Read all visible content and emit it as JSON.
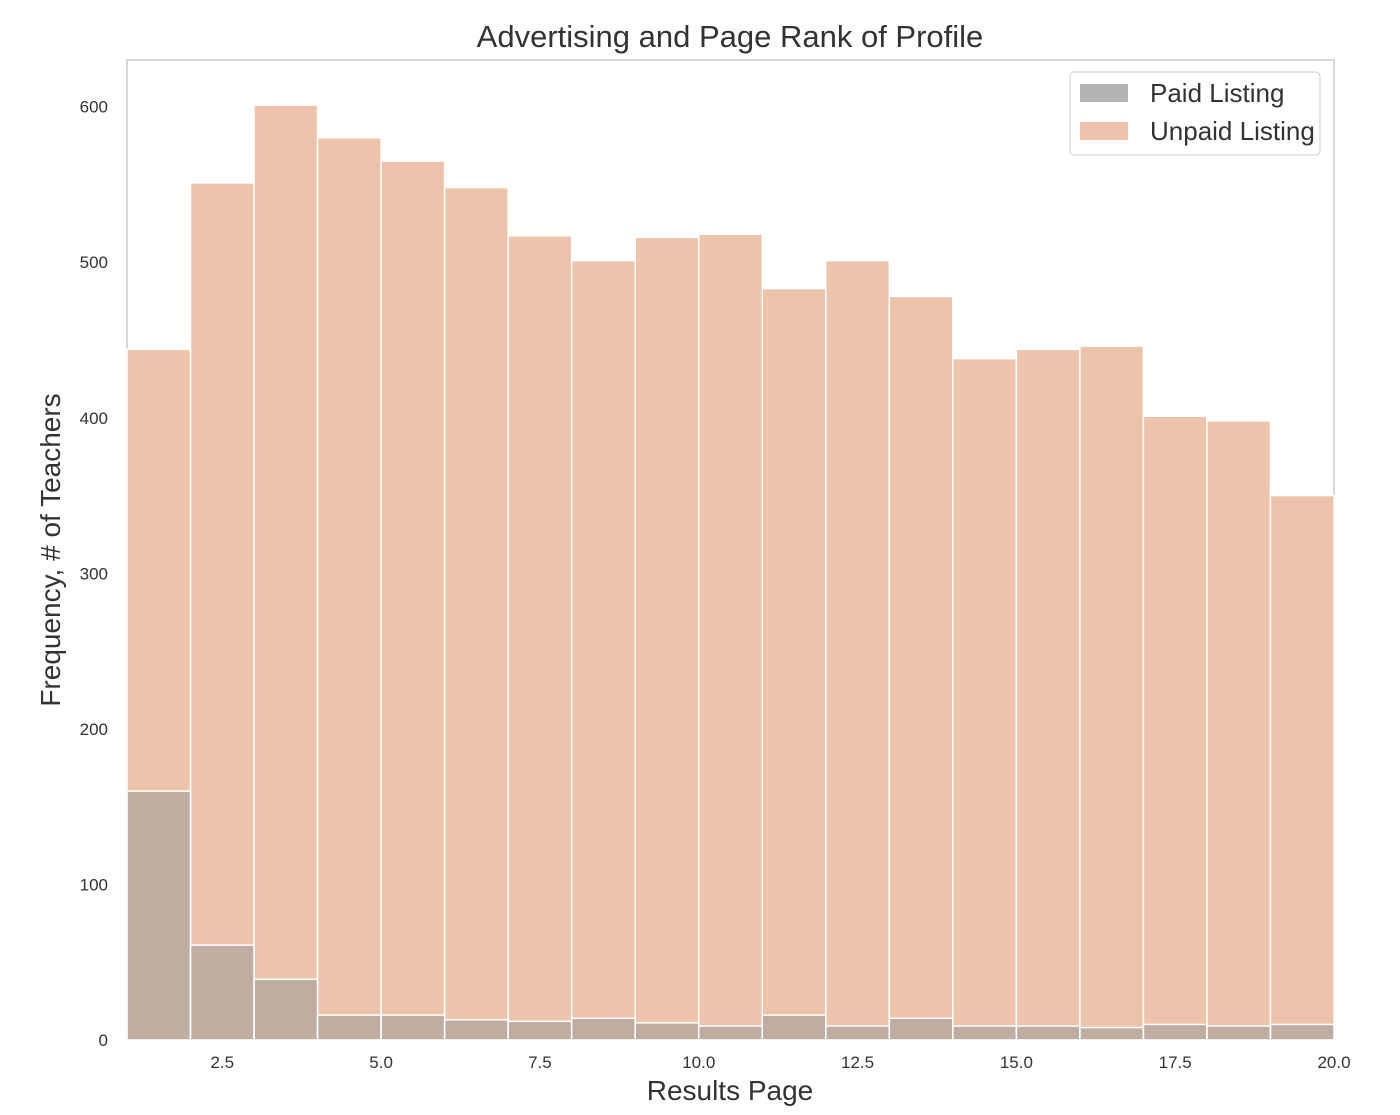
{
  "chart_data": {
    "type": "bar",
    "title": "Advertising and Page Rank of Profile",
    "xlabel": "Results Page",
    "ylabel": "Frequency, # of Teachers",
    "xlim": [
      1,
      20
    ],
    "ylim": [
      0,
      630
    ],
    "bin_edges": [
      1,
      2,
      3,
      4,
      5,
      6,
      7,
      8,
      9,
      10,
      11,
      12,
      13,
      14,
      15,
      16,
      17,
      18,
      19,
      20
    ],
    "xticks": [
      2.5,
      5.0,
      7.5,
      10.0,
      12.5,
      15.0,
      17.5,
      20.0
    ],
    "xtick_labels": [
      "2.5",
      "5.0",
      "7.5",
      "10.0",
      "12.5",
      "15.0",
      "17.5",
      "20.0"
    ],
    "yticks": [
      0,
      100,
      200,
      300,
      400,
      500,
      600
    ],
    "ytick_labels": [
      "0",
      "100",
      "200",
      "300",
      "400",
      "500",
      "600"
    ],
    "grid": false,
    "legend_position": "top-right",
    "series": [
      {
        "name": "Unpaid Listing",
        "color": "#e8b496",
        "opacity": 0.8,
        "values": [
          444,
          551,
          601,
          580,
          565,
          548,
          517,
          501,
          516,
          518,
          483,
          501,
          478,
          438,
          444,
          446,
          401,
          398,
          350
        ]
      },
      {
        "name": "Paid Listing",
        "color": "#9a9a9a",
        "opacity": 0.55,
        "values": [
          160,
          61,
          39,
          16,
          16,
          13,
          12,
          14,
          11,
          9,
          16,
          9,
          14,
          9,
          9,
          8,
          10,
          9,
          10
        ]
      }
    ],
    "legend": [
      "Paid Listing",
      "Unpaid Listing"
    ]
  }
}
